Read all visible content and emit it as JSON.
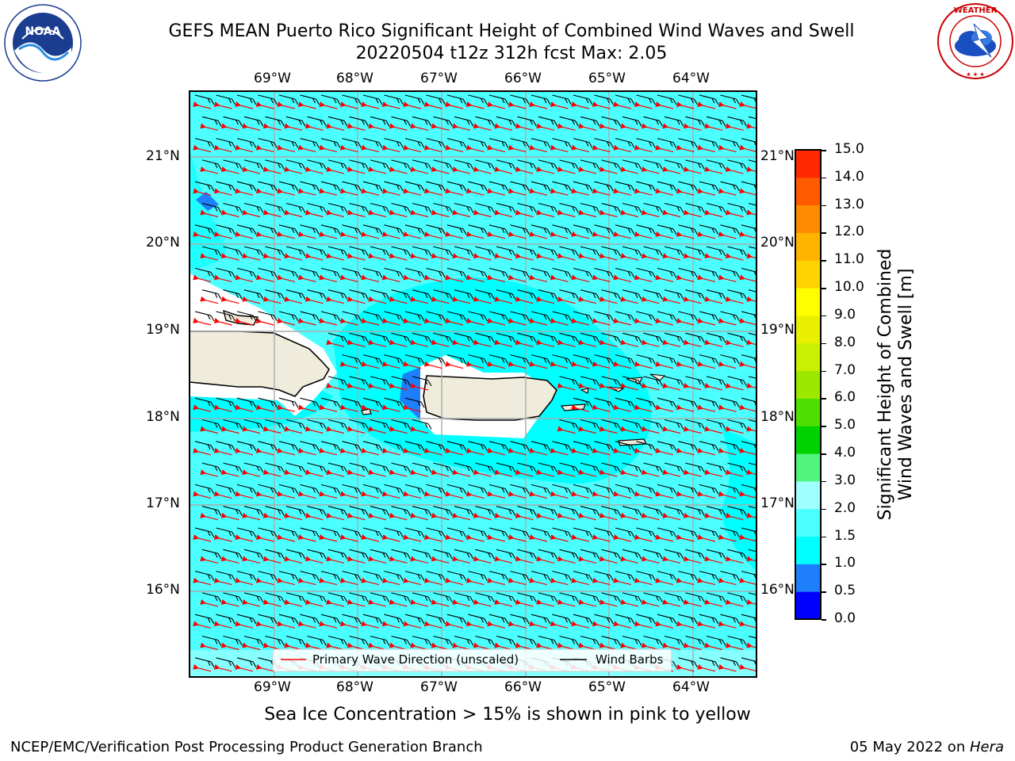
{
  "header": {
    "title_line1": "GEFS MEAN Puerto Rico Significant Height of Combined Wind Waves and Swell",
    "title_line2": "20220504 t12z 312h fcst   Max: 2.05",
    "noaa_logo_text": "NOAA",
    "noaa_ring_text": "NATIONAL OCEANIC AND ATMOSPHERIC ADMINISTRATION · U.S. DEPARTMENT OF COMMERCE",
    "nws_ring_text": "NATIONAL WEATHER SERVICE"
  },
  "map": {
    "lon_ticks": [
      "69°W",
      "68°W",
      "67°W",
      "66°W",
      "65°W",
      "64°W"
    ],
    "lat_ticks": [
      "21°N",
      "20°N",
      "19°N",
      "18°N",
      "17°N",
      "16°N"
    ],
    "legend": {
      "wave_direction": "Primary Wave Direction (unscaled)",
      "wind_barbs": "Wind Barbs"
    },
    "colors": {
      "ocean_main": "#4cffff",
      "ocean_light": "#00ffff",
      "land": "#efecdc",
      "lee_white": "#ffffff",
      "low_wave_blue": "#1e7ffa",
      "arrow_red": "#ff0000",
      "barb_black": "#000000"
    }
  },
  "colorbar": {
    "label_line1": "Significant Height of Combined",
    "label_line2": "Wind Waves and Swell [m]",
    "levels": [
      "0.0",
      "0.5",
      "1.0",
      "1.5",
      "2.0",
      "3.0",
      "4.0",
      "5.0",
      "6.0",
      "7.0",
      "8.0",
      "9.0",
      "10.0",
      "11.0",
      "12.0",
      "13.0",
      "14.0",
      "15.0"
    ],
    "colors": [
      "#0000ff",
      "#1e7ffa",
      "#00ffff",
      "#4cffff",
      "#a0ffff",
      "#52f57f",
      "#00d200",
      "#4ee000",
      "#9ce800",
      "#c8f000",
      "#e8f000",
      "#ffff00",
      "#ffd200",
      "#ffb400",
      "#ff8c00",
      "#ff5a00",
      "#ff2800"
    ]
  },
  "chart_data": {
    "type": "heatmap",
    "title": "GEFS MEAN Puerto Rico Significant Height of Combined Wind Waves and Swell",
    "subtitle": "20220504 t12z 312h fcst   Max: 2.05",
    "x_ticks": [
      "69°W",
      "68°W",
      "67°W",
      "66°W",
      "65°W",
      "64°W"
    ],
    "y_ticks": [
      "21°N",
      "20°N",
      "19°N",
      "18°N",
      "17°N",
      "16°N"
    ],
    "xlim": [
      -69.99,
      -63.25
    ],
    "ylim": [
      15.1,
      21.75
    ],
    "max_value": 2.05,
    "colorbar_range": [
      0.0,
      15.0
    ],
    "colorbar_label": "Significant Height of Combined Wind Waves and Swell [m]",
    "legend": [
      "Primary Wave Direction (unscaled)",
      "Wind Barbs"
    ],
    "grid": true
  },
  "footer": {
    "note": "Sea Ice Concentration > 15% is shown in pink to yellow",
    "left": "NCEP/EMC/Verification Post Processing Product Generation Branch",
    "date": "05 May 2022 on ",
    "host": "Hera"
  }
}
